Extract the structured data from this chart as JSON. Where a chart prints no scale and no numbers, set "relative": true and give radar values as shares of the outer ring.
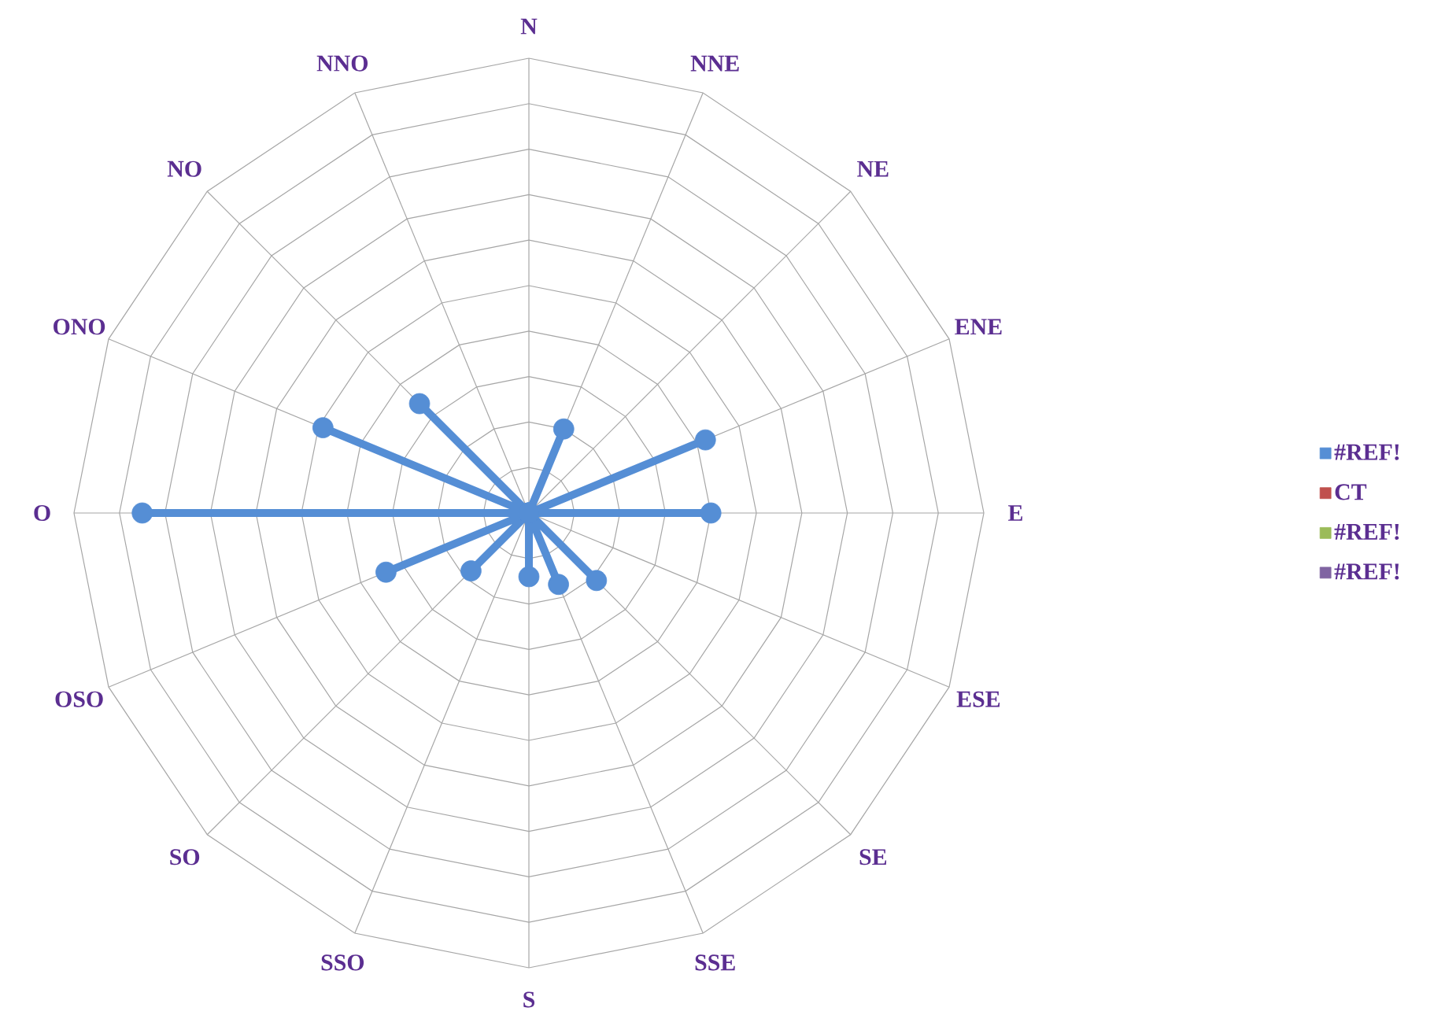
{
  "chart_data": {
    "type": "radar",
    "relative": true,
    "grid": true,
    "legend": "right",
    "marker": "circle",
    "categories": [
      "N",
      "NNE",
      "NE",
      "ENE",
      "E",
      "ESE",
      "SE",
      "SSE",
      "S",
      "SSO",
      "SO",
      "OSO",
      "O",
      "ONO",
      "NO",
      "NNO"
    ],
    "series": [
      {
        "name": "#REF!",
        "color": "#558ed5",
        "values": [
          0,
          0.2,
          0,
          0.42,
          0.4,
          0,
          0.21,
          0.17,
          0.14,
          0,
          0.18,
          0.34,
          0.85,
          0.49,
          0.34,
          0
        ]
      },
      {
        "name": "CT",
        "color": "#c0504d",
        "values": [
          null,
          null,
          null,
          null,
          null,
          null,
          null,
          null,
          null,
          null,
          null,
          null,
          null,
          null,
          null,
          null
        ]
      },
      {
        "name": "#REF!",
        "color": "#9bbb59",
        "values": [
          null,
          null,
          null,
          null,
          null,
          null,
          null,
          null,
          null,
          null,
          null,
          null,
          null,
          null,
          null,
          null
        ]
      },
      {
        "name": "#REF!",
        "color": "#8064a2",
        "values": [
          null,
          null,
          null,
          null,
          null,
          null,
          null,
          null,
          null,
          null,
          null,
          null,
          null,
          null,
          null,
          null
        ]
      }
    ]
  }
}
